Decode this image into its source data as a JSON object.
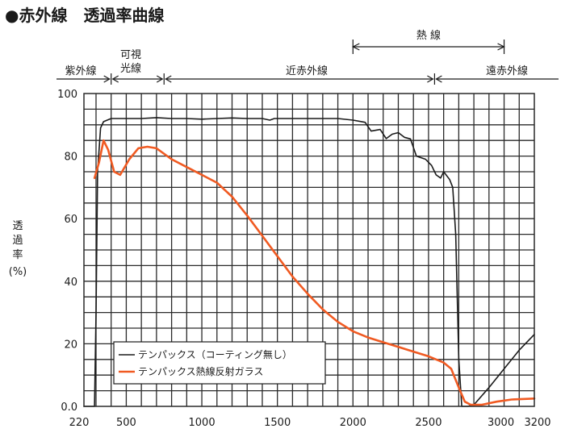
{
  "chart_data": {
    "type": "line",
    "title": "●赤外線　透過率曲線",
    "ylabel": [
      "透",
      "過",
      "率",
      "(%)"
    ],
    "x_ticks": [
      {
        "value": 220,
        "label": "220"
      },
      {
        "value": 500,
        "label": "500"
      },
      {
        "value": 1000,
        "label": "1000"
      },
      {
        "value": 1500,
        "label": "1500"
      },
      {
        "value": 2000,
        "label": "2000"
      },
      {
        "value": 2500,
        "label": "2500"
      },
      {
        "value": 3000,
        "label": "3000"
      },
      {
        "value": 3200,
        "label": "3200"
      }
    ],
    "y_ticks": [
      {
        "value": 0,
        "label": "0.0"
      },
      {
        "value": 20,
        "label": "20"
      },
      {
        "value": 40,
        "label": "40"
      },
      {
        "value": 60,
        "label": "60"
      },
      {
        "value": 80,
        "label": "80"
      },
      {
        "value": 100,
        "label": "100"
      }
    ],
    "xlim": [
      220,
      3200
    ],
    "ylim": [
      0,
      100
    ],
    "grid": true,
    "legend_position": "bottom-left",
    "colors": {
      "series_black": "#1a1a1a",
      "series_orange": "#f05a22",
      "grid": "#2a2a2a"
    },
    "regions": [
      {
        "label": "紫外線",
        "from": 120,
        "to": 400
      },
      {
        "label": "可視\n光線",
        "from": 400,
        "to": 750
      },
      {
        "label": "近赤外線",
        "from": 750,
        "to": 2540
      },
      {
        "label": "遠赤外線",
        "from": 2540,
        "to": 3200
      }
    ],
    "heat_band": {
      "label": "熱 線",
      "from": 2000,
      "to": 3000
    },
    "series": [
      {
        "name": "テンパックス（コーティング無し）",
        "color": "#1a1a1a",
        "points": [
          [
            220,
            0
          ],
          [
            290,
            0
          ],
          [
            300,
            30
          ],
          [
            310,
            75
          ],
          [
            330,
            89
          ],
          [
            350,
            91
          ],
          [
            400,
            92
          ],
          [
            500,
            92
          ],
          [
            600,
            92
          ],
          [
            700,
            92.3
          ],
          [
            800,
            92
          ],
          [
            900,
            92
          ],
          [
            1000,
            91.8
          ],
          [
            1100,
            92
          ],
          [
            1200,
            92.2
          ],
          [
            1300,
            92
          ],
          [
            1400,
            92
          ],
          [
            1450,
            91.5
          ],
          [
            1480,
            92
          ],
          [
            1500,
            92
          ],
          [
            1600,
            92
          ],
          [
            1700,
            92
          ],
          [
            1800,
            92
          ],
          [
            1900,
            92
          ],
          [
            2000,
            91.5
          ],
          [
            2080,
            90.8
          ],
          [
            2120,
            88
          ],
          [
            2180,
            88.5
          ],
          [
            2220,
            85.6
          ],
          [
            2260,
            87
          ],
          [
            2300,
            87.5
          ],
          [
            2340,
            86
          ],
          [
            2380,
            85.5
          ],
          [
            2420,
            80
          ],
          [
            2480,
            79
          ],
          [
            2520,
            77
          ],
          [
            2550,
            74
          ],
          [
            2580,
            73
          ],
          [
            2600,
            75
          ],
          [
            2640,
            72.5
          ],
          [
            2660,
            70
          ],
          [
            2680,
            55
          ],
          [
            2700,
            15
          ],
          [
            2720,
            0
          ],
          [
            2760,
            0
          ],
          [
            2800,
            0.5
          ],
          [
            2900,
            6
          ],
          [
            3000,
            12
          ],
          [
            3100,
            18
          ],
          [
            3200,
            23
          ]
        ]
      },
      {
        "name": "テンパックス熱線反射ガラス",
        "color": "#f05a22",
        "points": [
          [
            290,
            73
          ],
          [
            320,
            78
          ],
          [
            350,
            85
          ],
          [
            380,
            82
          ],
          [
            420,
            75
          ],
          [
            460,
            74
          ],
          [
            520,
            79
          ],
          [
            580,
            82.5
          ],
          [
            640,
            83
          ],
          [
            700,
            82.5
          ],
          [
            800,
            79
          ],
          [
            900,
            76.5
          ],
          [
            1000,
            74
          ],
          [
            1100,
            71.5
          ],
          [
            1200,
            67
          ],
          [
            1300,
            61
          ],
          [
            1400,
            54.5
          ],
          [
            1500,
            48
          ],
          [
            1600,
            41.5
          ],
          [
            1700,
            36
          ],
          [
            1800,
            31
          ],
          [
            1900,
            27
          ],
          [
            2000,
            24
          ],
          [
            2100,
            22
          ],
          [
            2200,
            20.5
          ],
          [
            2300,
            19
          ],
          [
            2400,
            17.5
          ],
          [
            2500,
            16
          ],
          [
            2600,
            14
          ],
          [
            2650,
            12
          ],
          [
            2700,
            6
          ],
          [
            2740,
            1.5
          ],
          [
            2780,
            0.5
          ],
          [
            2850,
            0.5
          ],
          [
            2950,
            1.5
          ],
          [
            3050,
            2.2
          ],
          [
            3200,
            2.5
          ]
        ]
      }
    ]
  }
}
